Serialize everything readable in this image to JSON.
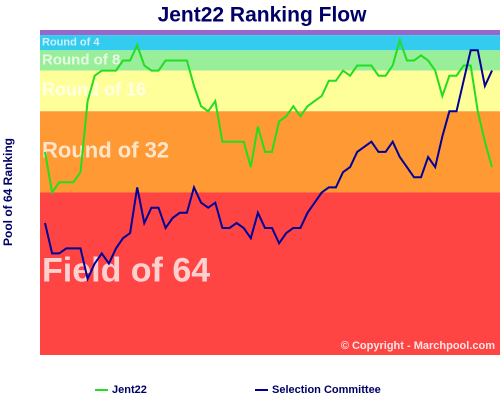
{
  "chart_data": {
    "type": "line",
    "title": "Jent22 Ranking Flow",
    "y_label": "Pool of 64 Ranking",
    "copyright": "© Copyright - Marchpool.com",
    "ylim": [
      64,
      0
    ],
    "bands": [
      {
        "label": "Round of 4",
        "from": 1,
        "to": 4,
        "color": "#33ccee"
      },
      {
        "label": "Round of 8",
        "from": 4,
        "to": 8,
        "color": "#99ee99"
      },
      {
        "label": "Round of 16",
        "from": 8,
        "to": 16,
        "color": "#ffff99"
      },
      {
        "label": "Round of 32",
        "from": 16,
        "to": 32,
        "color": "#ff9933"
      },
      {
        "label": "Field of 64",
        "from": 32,
        "to": 64,
        "color": "#ff4444"
      }
    ],
    "series": [
      {
        "name": "Jent22",
        "color": "#22dd22",
        "values": [
          24,
          32,
          30,
          30,
          30,
          28,
          14,
          9,
          8,
          8,
          8,
          6,
          6,
          3,
          7,
          8,
          8,
          6,
          6,
          6,
          6,
          11,
          15,
          16,
          14,
          22,
          22,
          22,
          22,
          27,
          19,
          24,
          24,
          18,
          17,
          15,
          17,
          15,
          14,
          13,
          10,
          10,
          8,
          9,
          7,
          7,
          7,
          9,
          9,
          7,
          2,
          6,
          6,
          5,
          6,
          8,
          13,
          9,
          9,
          7,
          7,
          16,
          22,
          27
        ]
      },
      {
        "name": "Selection Committee",
        "color": "#000099",
        "values": [
          38,
          44,
          44,
          43,
          43,
          43,
          49,
          46,
          44,
          46,
          43,
          41,
          40,
          31,
          38,
          35,
          35,
          39,
          37,
          36,
          36,
          31,
          34,
          35,
          34,
          39,
          39,
          38,
          39,
          41,
          36,
          39,
          39,
          42,
          40,
          39,
          39,
          36,
          34,
          32,
          31,
          31,
          28,
          27,
          24,
          23,
          22,
          24,
          24,
          22,
          25,
          27,
          29,
          29,
          25,
          27,
          21,
          16,
          16,
          10,
          4,
          4,
          11,
          8
        ]
      }
    ]
  }
}
